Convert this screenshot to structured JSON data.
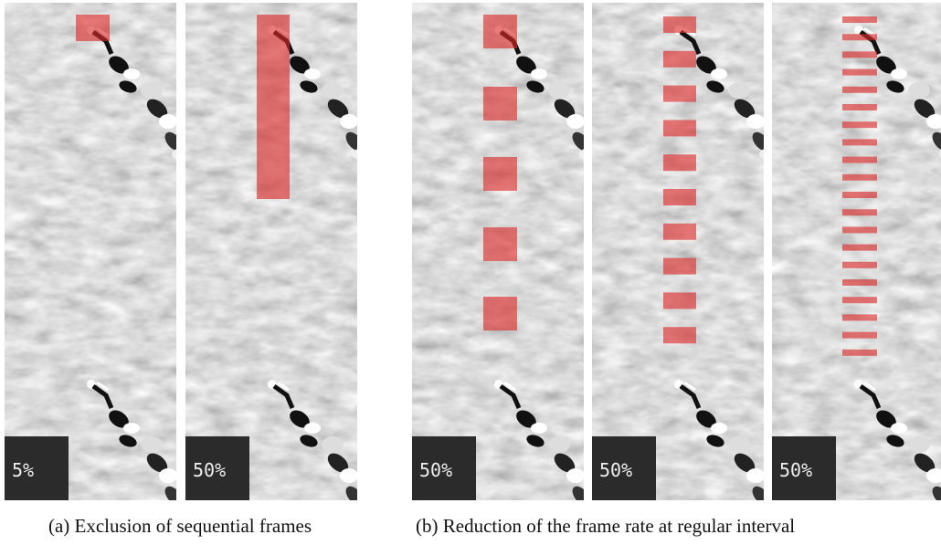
{
  "panels": [
    {
      "label": "5%"
    },
    {
      "label": "50%"
    },
    {
      "label": "50%"
    },
    {
      "label": "50%"
    },
    {
      "label": "50%"
    }
  ],
  "captions": {
    "a": "(a) Exclusion of sequential frames",
    "b": "(b) Reduction of the frame rate at regular interval"
  }
}
